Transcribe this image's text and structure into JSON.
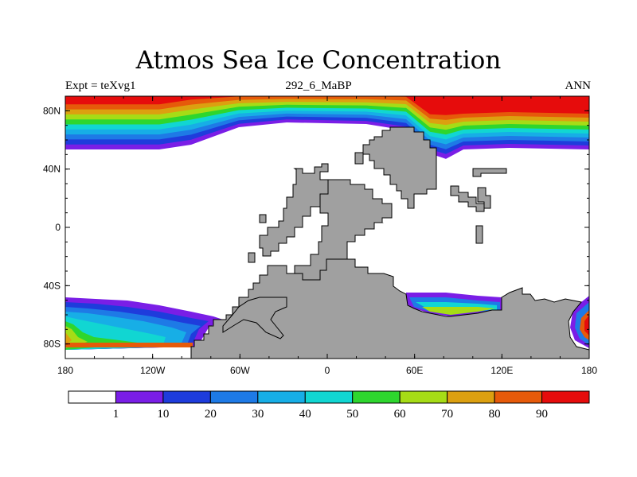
{
  "map": {
    "title": "Atmos Sea Ice Concentration",
    "expt_label": "Expt = teXvg1",
    "run_label": "292_6_MaBP",
    "period_label": "ANN",
    "projection": "cylindrical-equidistant",
    "lon_range": [
      -180,
      180
    ],
    "lat_range": [
      -90,
      90
    ],
    "x_ticks": [
      "180",
      "120W",
      "60W",
      "0",
      "60E",
      "120E",
      "180"
    ],
    "y_ticks": [
      "80N",
      "40N",
      "0",
      "40S",
      "80S"
    ],
    "land_color": "#a0a0a0",
    "background_color": "#ffffff"
  },
  "colorbar": {
    "colors": [
      "#ffffff",
      "#7a1ee6",
      "#1e3cdc",
      "#1e7ae6",
      "#17aee6",
      "#11d6d2",
      "#2ed62e",
      "#a6dc16",
      "#dca010",
      "#e65a0a",
      "#e60c0c"
    ],
    "labels": [
      "1",
      "10",
      "20",
      "30",
      "40",
      "50",
      "60",
      "70",
      "80",
      "90"
    ]
  },
  "ice_palette": [
    "#7a1ee6",
    "#1e3cdc",
    "#1e7ae6",
    "#17aee6",
    "#11d6d2",
    "#2ed62e",
    "#a6dc16",
    "#dca010",
    "#e65a0a",
    "#e60c0c"
  ]
}
